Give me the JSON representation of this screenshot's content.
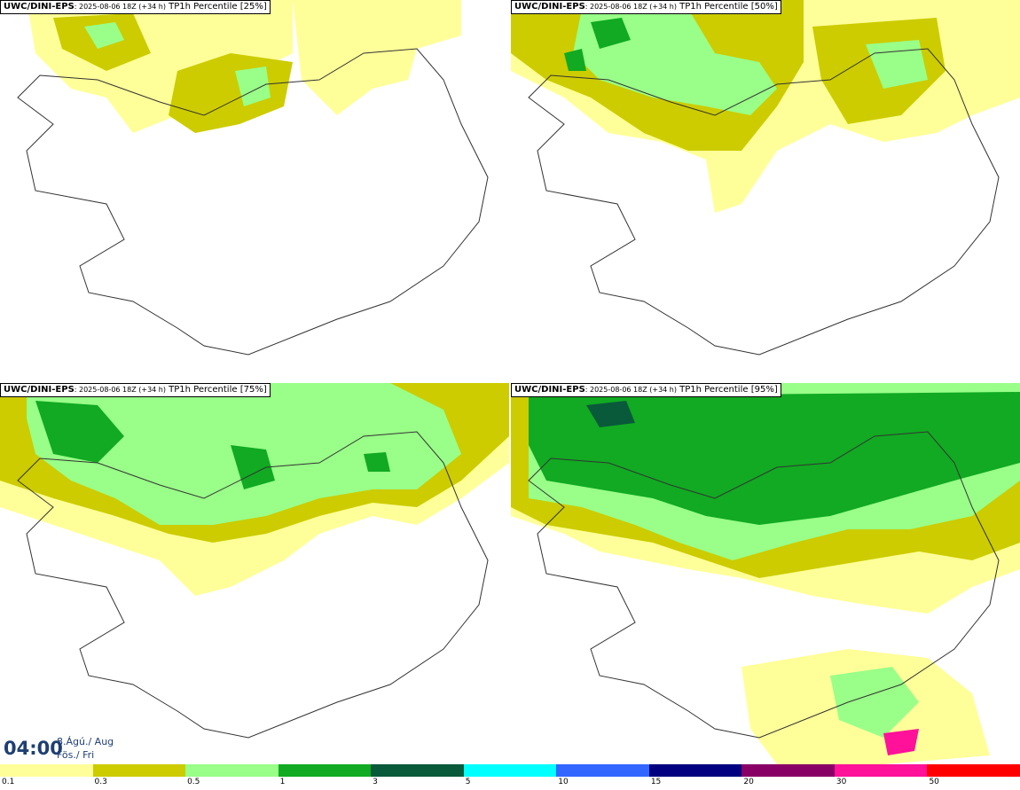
{
  "panels": [
    {
      "model": "UWC/DINI-EPS",
      "run": ": 2025-08-06 18Z (+34 h)",
      "product": " TP1h Percentile [25%]"
    },
    {
      "model": "UWC/DINI-EPS",
      "run": ": 2025-08-06 18Z (+34 h)",
      "product": " TP1h Percentile [50%]"
    },
    {
      "model": "UWC/DINI-EPS",
      "run": ": 2025-08-06 18Z (+34 h)",
      "product": " TP1h Percentile [75%]"
    },
    {
      "model": "UWC/DINI-EPS",
      "run": ": 2025-08-06 18Z (+34 h)",
      "product": " TP1h Percentile [95%]"
    }
  ],
  "valid_time": {
    "time": "04:00",
    "date_line1": "8.Ágú./ Aug",
    "date_line2": "Fös./ Fri"
  },
  "legend": {
    "colors": [
      "#ffff99",
      "#cccc00",
      "#99ff88",
      "#11aa22",
      "#085a3a",
      "#00ffff",
      "#3366ff",
      "#000080",
      "#880066",
      "#ff1199",
      "#ff0000"
    ],
    "ticks": [
      "0.1",
      "0.3",
      "0.5",
      "1",
      "3",
      "5",
      "10",
      "15",
      "20",
      "30",
      "50"
    ]
  },
  "colors": {
    "time_text": "#1f3f73",
    "coastline": "#333333"
  }
}
